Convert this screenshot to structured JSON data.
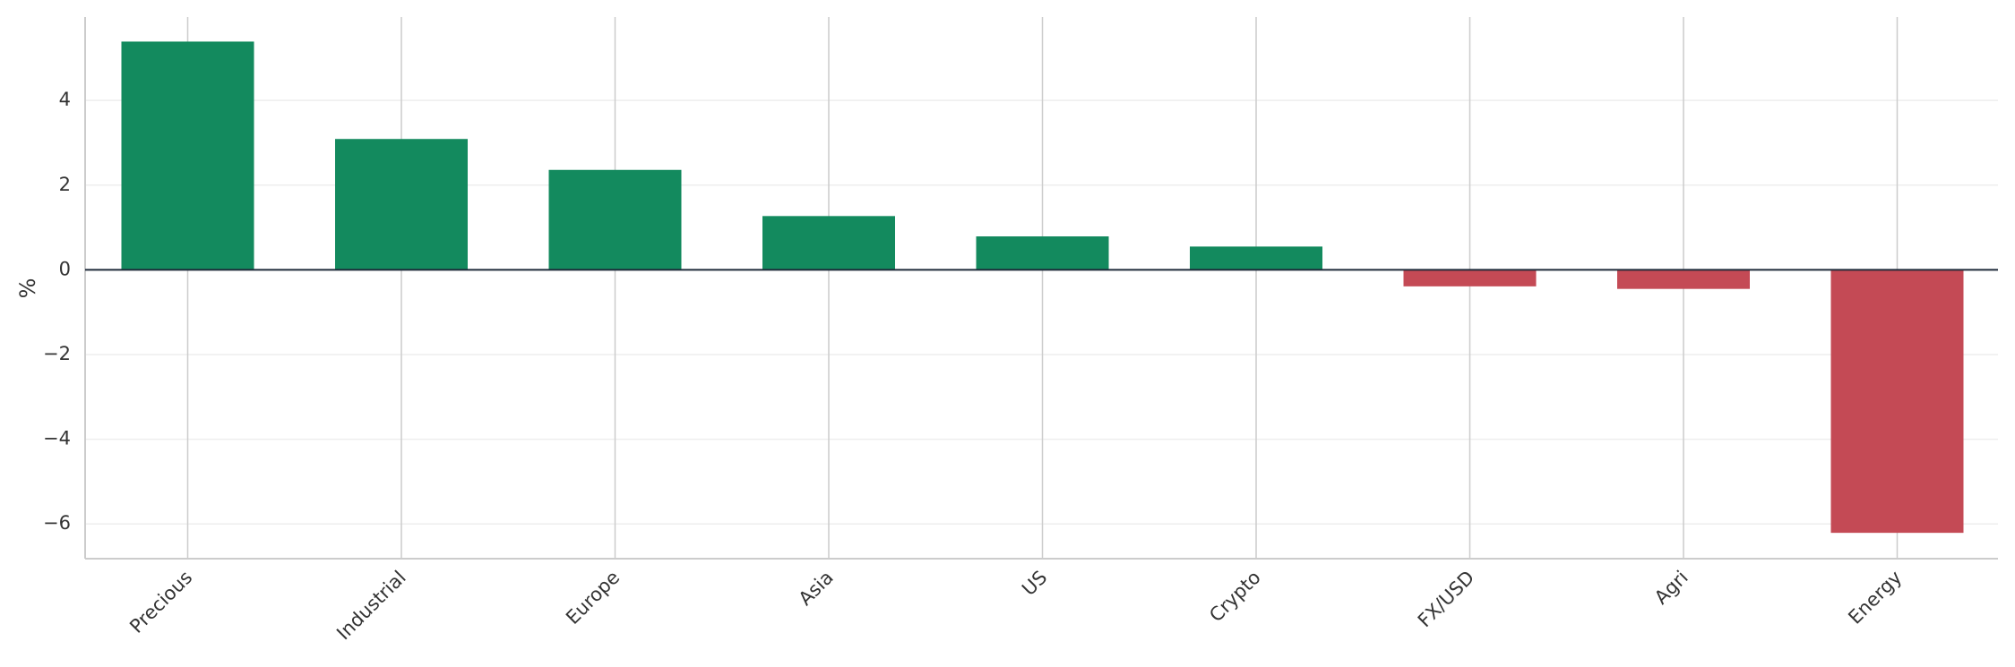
{
  "chart_data": {
    "type": "bar",
    "y_label": "%",
    "categories": [
      "Precious",
      "Industrial",
      "Europe",
      "Asia",
      "US",
      "Crypto",
      "FX/USD",
      "Agri",
      "Energy"
    ],
    "values": [
      5.39,
      3.09,
      2.36,
      1.27,
      0.79,
      0.55,
      -0.39,
      -0.45,
      -6.21
    ],
    "positive_color": "#138a5e",
    "negative_color": "#c44a55",
    "ylim": [
      -6.82,
      5.97
    ],
    "yticks": [
      {
        "value": -6,
        "label": "−6"
      },
      {
        "value": -4,
        "label": "−4"
      },
      {
        "value": -2,
        "label": "−2"
      },
      0,
      2,
      4
    ],
    "grid": true
  }
}
